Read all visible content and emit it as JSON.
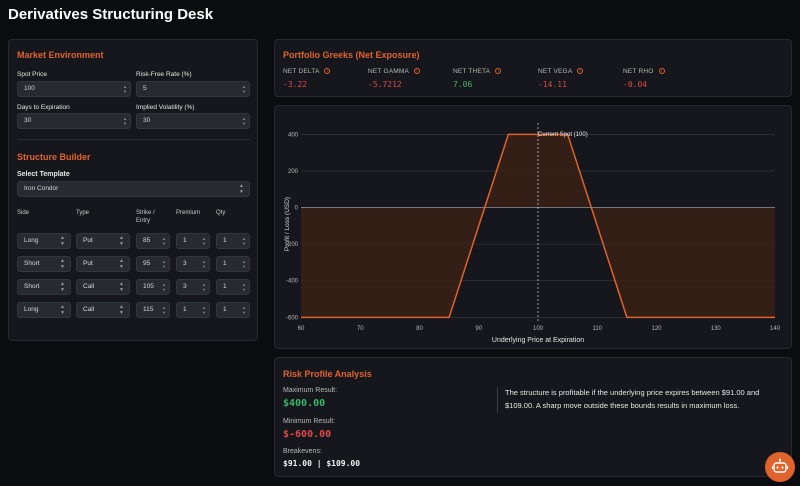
{
  "app": {
    "title": "Derivatives Structuring Desk"
  },
  "market": {
    "heading": "Market Environment",
    "spot_label": "Spot Price",
    "spot_value": "100",
    "rate_label": "Risk-Free Rate (%)",
    "rate_value": "5",
    "days_label": "Days to Expiration",
    "days_value": "30",
    "vol_label": "Implied Volatility (%)",
    "vol_value": "30"
  },
  "builder": {
    "heading": "Structure Builder",
    "template_label": "Select Template",
    "template_value": "Iron Condor",
    "columns": {
      "side": "Side",
      "type": "Type",
      "strike_line1": "Strike /",
      "strike_line2": "Entry",
      "premium": "Premium",
      "qty": "Qty"
    },
    "legs": [
      {
        "side": "Long",
        "type": "Put",
        "strike": "85",
        "premium": "1",
        "qty": "1"
      },
      {
        "side": "Short",
        "type": "Put",
        "strike": "95",
        "premium": "3",
        "qty": "1"
      },
      {
        "side": "Short",
        "type": "Call",
        "strike": "105",
        "premium": "3",
        "qty": "1"
      },
      {
        "side": "Long",
        "type": "Call",
        "strike": "115",
        "premium": "1",
        "qty": "1"
      }
    ]
  },
  "greeks": {
    "heading": "Portfolio Greeks (Net Exposure)",
    "items": [
      {
        "label": "NET DELTA",
        "value": "-3.22",
        "tone": "neg"
      },
      {
        "label": "NET GAMMA",
        "value": "-5.7212",
        "tone": "neg"
      },
      {
        "label": "NET THETA",
        "value": "7.06",
        "tone": "pos"
      },
      {
        "label": "NET VEGA",
        "value": "-14.11",
        "tone": "neg"
      },
      {
        "label": "NET RHO",
        "value": "-0.04",
        "tone": "neg"
      }
    ]
  },
  "chart_data": {
    "type": "line",
    "title": "",
    "xlabel": "Underlying Price at Expiration",
    "ylabel": "Profit / Loss (USD)",
    "xlim": [
      60,
      140
    ],
    "ylim": [
      -620,
      440
    ],
    "x_ticks": [
      60,
      70,
      80,
      90,
      100,
      110,
      120,
      130,
      140
    ],
    "y_ticks": [
      -600,
      -400,
      -200,
      0,
      200,
      400
    ],
    "annotation": "Current Spot (100)",
    "annotation_x": 100,
    "series": [
      {
        "x": [
          60,
          85,
          95,
          105,
          115,
          140
        ],
        "y": [
          -600,
          -600,
          400,
          400,
          -600,
          -600
        ]
      }
    ],
    "colors": {
      "line": "#e0622c",
      "fill": "#3a2116",
      "grid": "#3a3d44",
      "zero": "#7a7d84"
    }
  },
  "risk": {
    "heading": "Risk Profile Analysis",
    "max_label": "Maximum Result:",
    "max_value": "$400.00",
    "min_label": "Minimum Result:",
    "min_value": "$-600.00",
    "be_label": "Breakevens:",
    "be_value": "$91.00 | $109.00",
    "note": "The structure is profitable if the underlying price expires between $91.00 and $109.00. A sharp move outside these bounds results in maximum loss."
  },
  "assistant": {
    "icon": "bot-icon"
  }
}
